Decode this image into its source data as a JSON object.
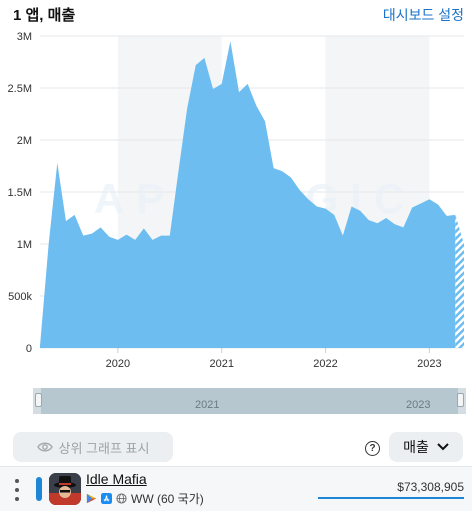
{
  "header": {
    "title": "1 앱, 매출",
    "dashboard_link": "대시보드 설정"
  },
  "chart_data": {
    "type": "area",
    "title": "",
    "xlabel": "",
    "ylabel": "",
    "y_tick_labels": [
      "0",
      "500k",
      "1M",
      "1.5M",
      "2M",
      "2.5M",
      "3M"
    ],
    "y_ticks": [
      0,
      500000,
      1000000,
      1500000,
      2000000,
      2500000,
      3000000
    ],
    "ylim": [
      0,
      3000000
    ],
    "x_tick_labels": [
      "2020",
      "2021",
      "2022",
      "2023"
    ],
    "x_ticks": [
      "2020-01",
      "2021-01",
      "2022-01",
      "2023-01"
    ],
    "xlim": [
      "2019-04",
      "2023-05"
    ],
    "grid": true,
    "watermark": "APPMAGIC",
    "series": [
      {
        "color": "#6ebdf0",
        "x": [
          "2019-04",
          "2019-05",
          "2019-06",
          "2019-07",
          "2019-08",
          "2019-09",
          "2019-10",
          "2019-11",
          "2019-12",
          "2020-01",
          "2020-02",
          "2020-03",
          "2020-04",
          "2020-05",
          "2020-06",
          "2020-07",
          "2020-08",
          "2020-09",
          "2020-10",
          "2020-11",
          "2020-12",
          "2021-01",
          "2021-02",
          "2021-03",
          "2021-04",
          "2021-05",
          "2021-06",
          "2021-07",
          "2021-08",
          "2021-09",
          "2021-10",
          "2021-11",
          "2021-12",
          "2022-01",
          "2022-02",
          "2022-03",
          "2022-04",
          "2022-05",
          "2022-06",
          "2022-07",
          "2022-08",
          "2022-09",
          "2022-10",
          "2022-11",
          "2022-12",
          "2023-01",
          "2023-02",
          "2023-03",
          "2023-04",
          "2023-05"
        ],
        "values": [
          20000,
          1000000,
          1780000,
          1220000,
          1280000,
          1080000,
          1100000,
          1160000,
          1070000,
          1040000,
          1090000,
          1040000,
          1150000,
          1040000,
          1080000,
          1080000,
          1700000,
          2300000,
          2720000,
          2790000,
          2490000,
          2540000,
          2950000,
          2460000,
          2540000,
          2330000,
          2180000,
          1730000,
          1700000,
          1640000,
          1520000,
          1430000,
          1360000,
          1340000,
          1280000,
          1080000,
          1360000,
          1320000,
          1230000,
          1200000,
          1250000,
          1190000,
          1160000,
          1350000,
          1390000,
          1430000,
          1380000,
          1270000,
          1280000,
          1000000
        ],
        "estimated_from": "2023-04"
      }
    ],
    "navigator": {
      "labels": [
        "2021",
        "2023"
      ]
    }
  },
  "controls": {
    "show_top_chart": "상위 그래프 표시",
    "metric_select": "매출"
  },
  "apps": [
    {
      "name": "Idle Mafia",
      "region": "WW (60 국가)",
      "revenue": "$73,308,905",
      "color": "#1e86d6"
    }
  ]
}
